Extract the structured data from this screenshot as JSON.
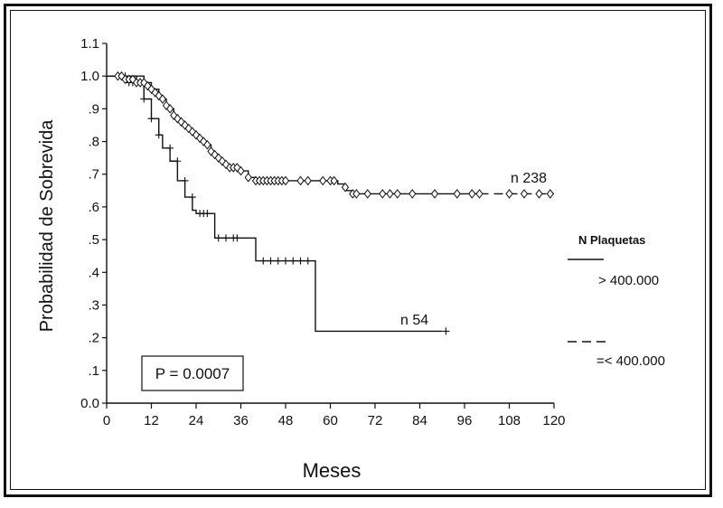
{
  "chart_data": {
    "type": "line",
    "xlabel": "Meses",
    "ylabel": "Probabilidad de Sobrevida",
    "xlim": [
      0,
      120
    ],
    "ylim": [
      0,
      1.1
    ],
    "x_ticks": [
      0,
      12,
      24,
      36,
      48,
      60,
      72,
      84,
      96,
      108,
      120
    ],
    "x_tick_labels": [
      "0",
      "12",
      "24",
      "36",
      "48",
      "60",
      "72",
      "84",
      "96",
      "108",
      "120"
    ],
    "y_ticks": [
      0,
      0.1,
      0.2,
      0.3,
      0.4,
      0.5,
      0.6,
      0.7,
      0.8,
      0.9,
      1.0,
      1.1
    ],
    "y_tick_labels": [
      "0.0",
      ".1",
      ".2",
      ".3",
      ".4",
      ".5",
      ".6",
      ".7",
      ".8",
      ".9",
      "1.0",
      "1.1"
    ],
    "grid": false,
    "legend_title": "N Plaquetas",
    "legend_position": "right",
    "annotation": "P = 0.0007",
    "series": [
      {
        "name": "> 400.000",
        "label": "n 54",
        "style": "solid",
        "censor_marker": "plus",
        "color": "#111111",
        "x": [
          0,
          3,
          8,
          10,
          12,
          14,
          15,
          17,
          19,
          21,
          23,
          24,
          26,
          29,
          35,
          40,
          45,
          50,
          55,
          56,
          90
        ],
        "y": [
          1.0,
          1.0,
          0.98,
          0.93,
          0.87,
          0.82,
          0.78,
          0.74,
          0.68,
          0.63,
          0.59,
          0.58,
          0.58,
          0.505,
          0.505,
          0.435,
          0.435,
          0.435,
          0.435,
          0.22,
          0.22
        ],
        "censored_x": [
          4,
          5,
          6,
          7,
          10,
          12,
          14,
          17,
          19,
          21,
          23,
          25,
          26,
          27,
          30,
          32,
          34,
          35,
          42,
          44,
          46,
          48,
          50,
          52,
          54,
          91
        ],
        "censored_y": [
          1.0,
          1.0,
          0.98,
          0.98,
          0.93,
          0.87,
          0.82,
          0.78,
          0.74,
          0.68,
          0.63,
          0.58,
          0.58,
          0.58,
          0.505,
          0.505,
          0.505,
          0.505,
          0.435,
          0.435,
          0.435,
          0.435,
          0.435,
          0.435,
          0.435,
          0.22
        ]
      },
      {
        "name": "=< 400.000",
        "label": "n 238",
        "style": "solid-then-dashed",
        "censor_marker": "diamond",
        "color": "#111111",
        "x": [
          0,
          3,
          10,
          12,
          14,
          16,
          18,
          20,
          22,
          24,
          26,
          28,
          30,
          32,
          34,
          36,
          38,
          40,
          50,
          59,
          62,
          64,
          66,
          70,
          100,
          120
        ],
        "y": [
          1.0,
          1.0,
          0.98,
          0.96,
          0.93,
          0.9,
          0.87,
          0.85,
          0.83,
          0.81,
          0.79,
          0.76,
          0.74,
          0.72,
          0.72,
          0.71,
          0.69,
          0.68,
          0.68,
          0.68,
          0.67,
          0.65,
          0.64,
          0.64,
          0.64,
          0.64
        ],
        "dashed_from_x": 100,
        "censored_x": [
          3,
          4,
          5,
          6,
          7,
          8,
          9,
          10,
          11,
          12,
          13,
          14,
          15,
          16,
          17,
          18,
          19,
          20,
          21,
          22,
          23,
          24,
          25,
          26,
          27,
          28,
          29,
          30,
          31,
          32,
          33,
          34,
          35,
          36,
          38,
          40,
          41,
          42,
          43,
          44,
          45,
          46,
          47,
          48,
          52,
          54,
          58,
          60,
          61,
          64,
          66,
          67,
          70,
          74,
          76,
          78,
          82,
          88,
          94,
          98,
          100,
          108,
          112,
          116,
          119
        ],
        "censored_y": [
          1.0,
          1.0,
          0.99,
          0.99,
          0.99,
          0.98,
          0.98,
          0.98,
          0.97,
          0.96,
          0.95,
          0.94,
          0.93,
          0.91,
          0.9,
          0.88,
          0.87,
          0.86,
          0.85,
          0.84,
          0.83,
          0.82,
          0.81,
          0.8,
          0.79,
          0.77,
          0.76,
          0.75,
          0.74,
          0.73,
          0.72,
          0.72,
          0.72,
          0.71,
          0.69,
          0.68,
          0.68,
          0.68,
          0.68,
          0.68,
          0.68,
          0.68,
          0.68,
          0.68,
          0.68,
          0.68,
          0.68,
          0.68,
          0.68,
          0.66,
          0.64,
          0.64,
          0.64,
          0.64,
          0.64,
          0.64,
          0.64,
          0.64,
          0.64,
          0.64,
          0.64,
          0.64,
          0.64,
          0.64,
          0.64
        ]
      }
    ]
  }
}
